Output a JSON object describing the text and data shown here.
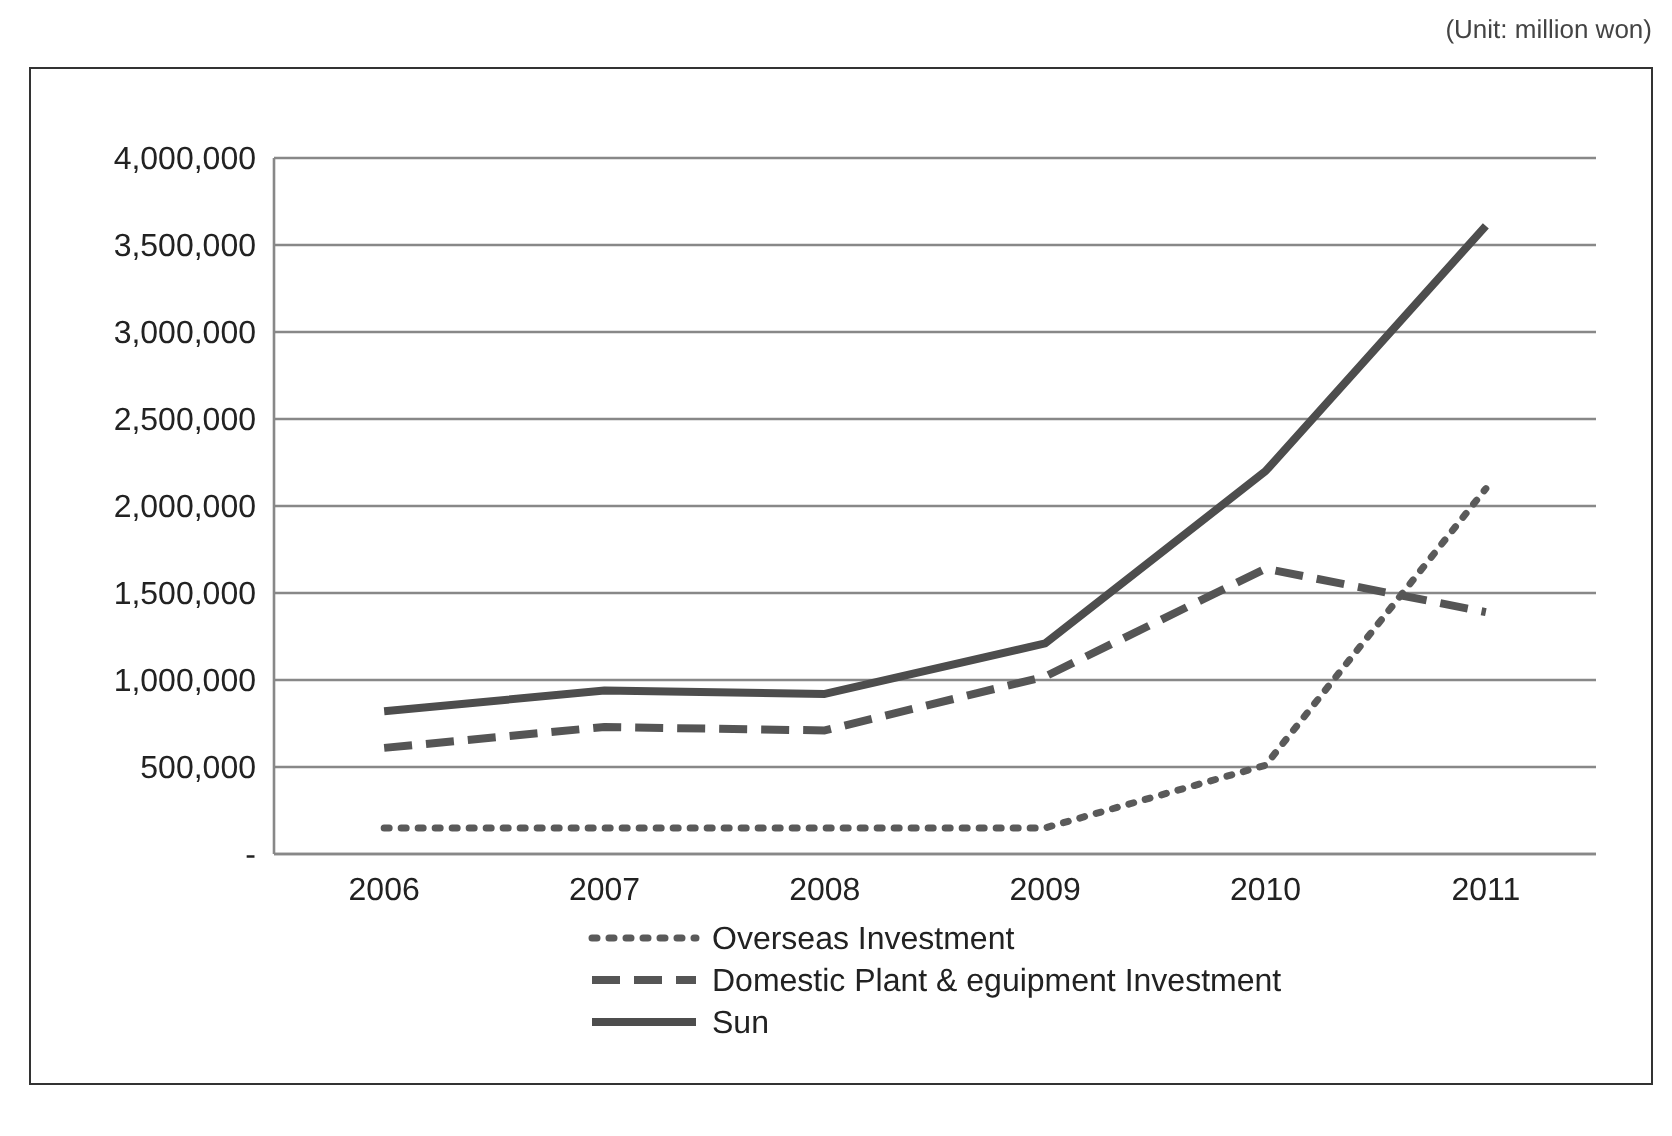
{
  "chart_data": {
    "type": "line",
    "categories": [
      "2006",
      "2007",
      "2008",
      "2009",
      "2010",
      "2011"
    ],
    "series": [
      {
        "name": "Overseas Investment",
        "color": "#5a5a5a",
        "line_style": "dotted",
        "values": [
          150000,
          150000,
          150000,
          150000,
          510000,
          2100000
        ]
      },
      {
        "name": "Domestic Plant & eguipment Investment",
        "color": "#555555",
        "line_style": "dashed",
        "values": [
          610000,
          730000,
          710000,
          1020000,
          1640000,
          1390000
        ]
      },
      {
        "name": "Sun",
        "color": "#4d4d4d",
        "line_style": "solid",
        "values": [
          820000,
          940000,
          920000,
          1210000,
          2200000,
          3610000
        ]
      }
    ],
    "ylim": [
      0,
      4000000
    ],
    "yticks": [
      {
        "value": 0,
        "label": "-"
      },
      {
        "value": 500000,
        "label": "500,000"
      },
      {
        "value": 1000000,
        "label": "1,000,000"
      },
      {
        "value": 1500000,
        "label": "1,500,000"
      },
      {
        "value": 2000000,
        "label": "2,000,000"
      },
      {
        "value": 2500000,
        "label": "2,500,000"
      },
      {
        "value": 3000000,
        "label": "3,000,000"
      },
      {
        "value": 3500000,
        "label": "3,500,000"
      },
      {
        "value": 4000000,
        "label": "4,000,000"
      }
    ],
    "grid": "y",
    "legend": "bottom",
    "annotations": [
      "(Unit: million won)"
    ]
  }
}
